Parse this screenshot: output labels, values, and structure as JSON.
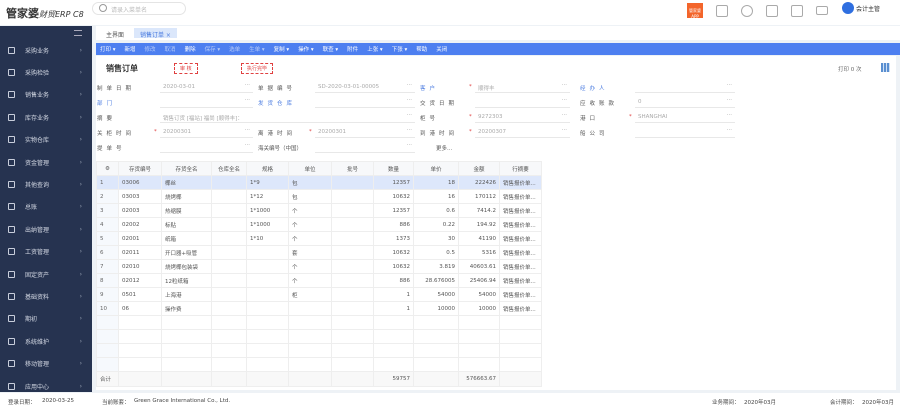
{
  "app": {
    "logo": "管家婆",
    "logo_sub": "财贸ERP C8",
    "search_placeholder": "请录入菜单名",
    "user": "会计主管",
    "promo": "管家婆APP"
  },
  "sidebar": [
    "采购业务",
    "采购检验",
    "销售业务",
    "库存业务",
    "实物仓库",
    "资金管理",
    "其他查询",
    "总账",
    "出纳管理",
    "工资管理",
    "固定资产",
    "基础资料",
    "期初",
    "系统维护",
    "移动管理",
    "应用中心"
  ],
  "tabs": [
    {
      "label": "主界面"
    },
    {
      "label": "销售订单 ×"
    }
  ],
  "toolbar": [
    {
      "label": "打印 ▾",
      "on": true
    },
    {
      "label": "新增",
      "on": true
    },
    {
      "label": "修改",
      "on": false
    },
    {
      "label": "取消",
      "on": false
    },
    {
      "label": "删除",
      "on": true
    },
    {
      "label": "保存 ▾",
      "on": false
    },
    {
      "label": "选单",
      "on": false
    },
    {
      "label": "生单 ▾",
      "on": false
    },
    {
      "label": "复制 ▾",
      "on": true
    },
    {
      "label": "操作 ▾",
      "on": true
    },
    {
      "label": "联查 ▾",
      "on": true
    },
    {
      "label": "附件",
      "on": true
    },
    {
      "label": "上张 ▾",
      "on": true
    },
    {
      "label": "下张 ▾",
      "on": true
    },
    {
      "label": "帮助",
      "on": true
    },
    {
      "label": "关闭",
      "on": true
    }
  ],
  "form": {
    "title": "销售订单",
    "stamp_audit": "审 核",
    "stamp_done": "执行完毕",
    "print_count": "打印 0 次",
    "more": "更多...",
    "fields": [
      [
        {
          "label": "制单日期",
          "value": "2020-03-01"
        },
        {
          "label": "单据编号",
          "value": "SD-2020-03-01-00005"
        },
        {
          "label": "客户",
          "value": "顺得丰",
          "blue": true,
          "req": true
        },
        {
          "label": "经办人",
          "value": "",
          "blue": true
        }
      ],
      [
        {
          "label": "部门",
          "value": "",
          "blue": true
        },
        {
          "label": "发货仓库",
          "value": "",
          "blue": true
        },
        {
          "label": "交货日期",
          "value": ""
        },
        {
          "label": "应收账款",
          "value": "0"
        }
      ],
      [
        {
          "label": "摘要",
          "value": "销售订货 [福站] 福尚 [顺得丰]："
        },
        {
          "label": "",
          "value": ""
        },
        {
          "label": "柜号",
          "value": "9272303",
          "req": true
        },
        {
          "label": "港口",
          "value": "SHANGHAI",
          "req": true
        }
      ],
      [
        {
          "label": "关柜时间",
          "value": "20200301",
          "req": true
        },
        {
          "label": "离港时间",
          "value": "20200301",
          "req": true
        },
        {
          "label": "到港时间",
          "value": "20200307",
          "req": true
        },
        {
          "label": "船公司",
          "value": ""
        }
      ],
      [
        {
          "label": "提单号",
          "value": ""
        },
        {
          "label": "海关编号（中国）",
          "value": ""
        }
      ]
    ]
  },
  "table": {
    "headers": [
      "存货编号",
      "存货全名",
      "仓库全名",
      "规格",
      "单位",
      "批号",
      "数量",
      "单价",
      "金额",
      "行摘要"
    ],
    "rows": [
      [
        "03006",
        "椰丝",
        "",
        "1*9",
        "包",
        "",
        "12357",
        "18",
        "222426",
        "销售报价单..."
      ],
      [
        "03003",
        "烧烤椰",
        "",
        "1*12",
        "包",
        "",
        "10632",
        "16",
        "170112",
        "销售报价单..."
      ],
      [
        "02003",
        "热缩膜",
        "",
        "1*1000",
        "个",
        "",
        "12357",
        "0.6",
        "7414.2",
        "销售报价单..."
      ],
      [
        "02002",
        "标贴",
        "",
        "1*1000",
        "个",
        "",
        "886",
        "0.22",
        "194.92",
        "销售报价单..."
      ],
      [
        "02001",
        "纸箱",
        "",
        "1*10",
        "个",
        "",
        "1373",
        "30",
        "41190",
        "销售报价单..."
      ],
      [
        "02011",
        "开口器+吸管",
        "",
        "",
        "套",
        "",
        "10632",
        "0.5",
        "5316",
        "销售报价单..."
      ],
      [
        "02010",
        "烧烤椰包装袋",
        "",
        "",
        "个",
        "",
        "10632",
        "3.819",
        "40603.61",
        "销售报价单..."
      ],
      [
        "02012",
        "12粒纸箱",
        "",
        "",
        "个",
        "",
        "886",
        "28.676005",
        "25406.94",
        "销售报价单..."
      ],
      [
        "0501",
        "上海港",
        "",
        "",
        "柜",
        "",
        "1",
        "54000",
        "54000",
        "销售报价单..."
      ],
      [
        "06",
        "操作费",
        "",
        "",
        "",
        "",
        "1",
        "10000",
        "10000",
        "销售报价单..."
      ]
    ],
    "total_label": "合计",
    "total_qty": "59757",
    "total_amount": "576663.67"
  },
  "footer": {
    "login_label": "登录日期：",
    "login": "2020-03-25",
    "company_label": "当前账套：",
    "company": "Green Grace International Co., Ltd.",
    "biz_label": "业务期间：",
    "biz": "2020年03月",
    "acct_label": "会计期间：",
    "acct": "2020年03月"
  }
}
